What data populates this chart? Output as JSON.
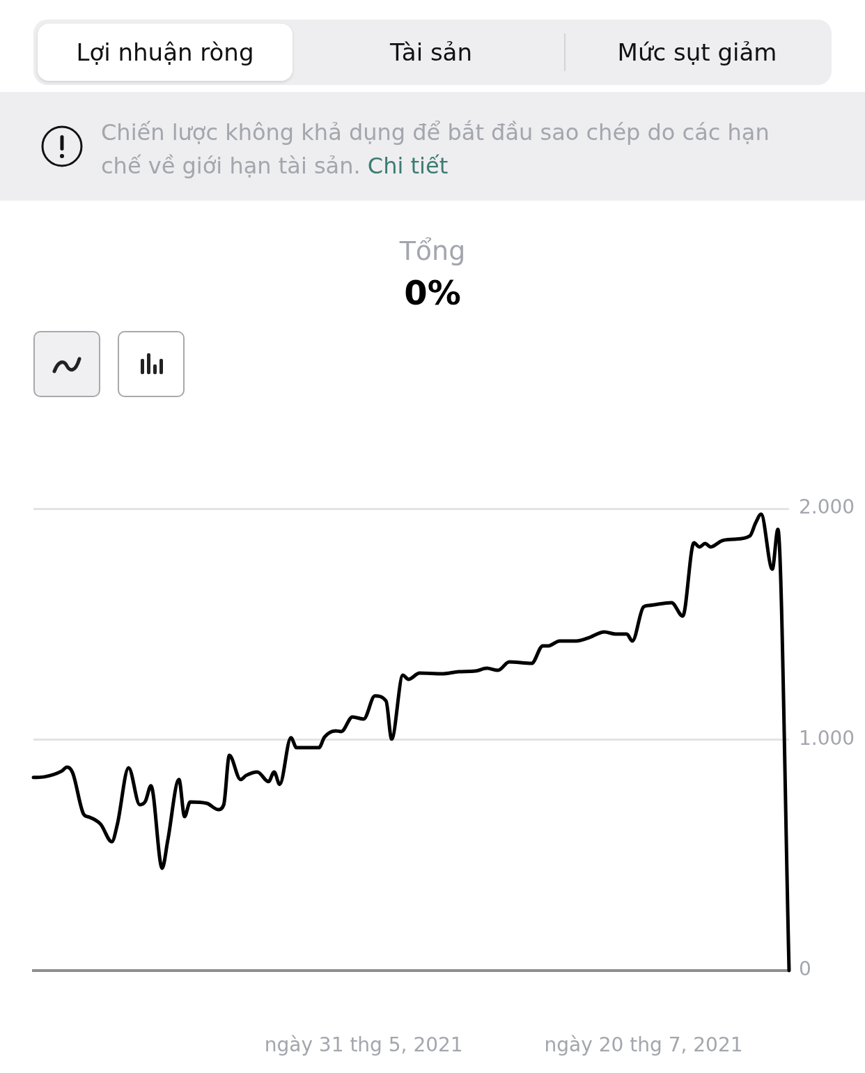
{
  "chart_data": {
    "type": "line",
    "title": "Tổng",
    "subtitle": "0%",
    "annotations": [
      "Lợi nhuận ròng",
      "Tài sản",
      "Mức sụt giảm",
      "Chiến lược không khả dụng để bắt đầu sao chép do các hạn chế về giới hạn tài sản.",
      "Chi tiết"
    ],
    "x": [
      "2021-04-02",
      "2021-04-04",
      "2021-04-07",
      "2021-04-08",
      "2021-04-09",
      "2021-04-11",
      "2021-04-12",
      "2021-04-14",
      "2021-04-16",
      "2021-04-17",
      "2021-04-19",
      "2021-04-21",
      "2021-04-22",
      "2021-04-23",
      "2021-04-25",
      "2021-04-26",
      "2021-04-28",
      "2021-04-29",
      "2021-04-30",
      "2021-05-03",
      "2021-05-05",
      "2021-05-06",
      "2021-05-07",
      "2021-05-09",
      "2021-05-10",
      "2021-05-12",
      "2021-05-14",
      "2021-05-15",
      "2021-05-16",
      "2021-05-18",
      "2021-05-19",
      "2021-05-23",
      "2021-05-24",
      "2021-05-26",
      "2021-05-27",
      "2021-05-29",
      "2021-05-31",
      "2021-06-02",
      "2021-06-04",
      "2021-06-05",
      "2021-06-07",
      "2021-06-08",
      "2021-06-10",
      "2021-06-14",
      "2021-06-17",
      "2021-06-20",
      "2021-06-22",
      "2021-06-24",
      "2021-06-26",
      "2021-06-30",
      "2021-07-02",
      "2021-07-03",
      "2021-07-05",
      "2021-07-08",
      "2021-07-10",
      "2021-07-13",
      "2021-07-15",
      "2021-07-17",
      "2021-07-18",
      "2021-07-20",
      "2021-07-21",
      "2021-07-25",
      "2021-07-27",
      "2021-07-29",
      "2021-07-30",
      "2021-07-31",
      "2021-08-01",
      "2021-08-03",
      "2021-08-05",
      "2021-08-08",
      "2021-08-09",
      "2021-08-10",
      "2021-08-12",
      "2021-08-13",
      "2021-08-15"
    ],
    "series": [
      {
        "color": "#000000",
        "values": [
          836,
          839,
          863,
          881,
          857,
          676,
          664,
          634,
          558,
          634,
          878,
          718,
          733,
          800,
          443,
          564,
          827,
          667,
          730,
          724,
          697,
          718,
          932,
          827,
          845,
          860,
          818,
          860,
          806,
          1008,
          965,
          965,
          1011,
          1038,
          1035,
          1098,
          1089,
          1189,
          1167,
          1002,
          1279,
          1261,
          1288,
          1285,
          1294,
          1297,
          1309,
          1300,
          1336,
          1330,
          1406,
          1406,
          1427,
          1427,
          1439,
          1466,
          1457,
          1457,
          1427,
          1575,
          1581,
          1593,
          1535,
          1852,
          1834,
          1849,
          1834,
          1861,
          1867,
          1882,
          1937,
          1976,
          1738,
          1910,
          0
        ]
      }
    ],
    "xlim": [
      "2021-04-02",
      "2021-08-15"
    ],
    "xticks": [
      {
        "value": "2021-05-31",
        "label": "ngày 31 thg 5, 2021"
      },
      {
        "value": "2021-07-20",
        "label": "ngày 20 thg 7, 2021"
      }
    ],
    "ylim": [
      0,
      2000
    ],
    "yticks": [
      {
        "value": 0,
        "label": "0"
      },
      {
        "value": 1000,
        "label": "1.000"
      },
      {
        "value": 2000,
        "label": "2.000"
      }
    ],
    "grid": "y",
    "legend": false,
    "marker": "none",
    "line_style": "solid"
  }
}
